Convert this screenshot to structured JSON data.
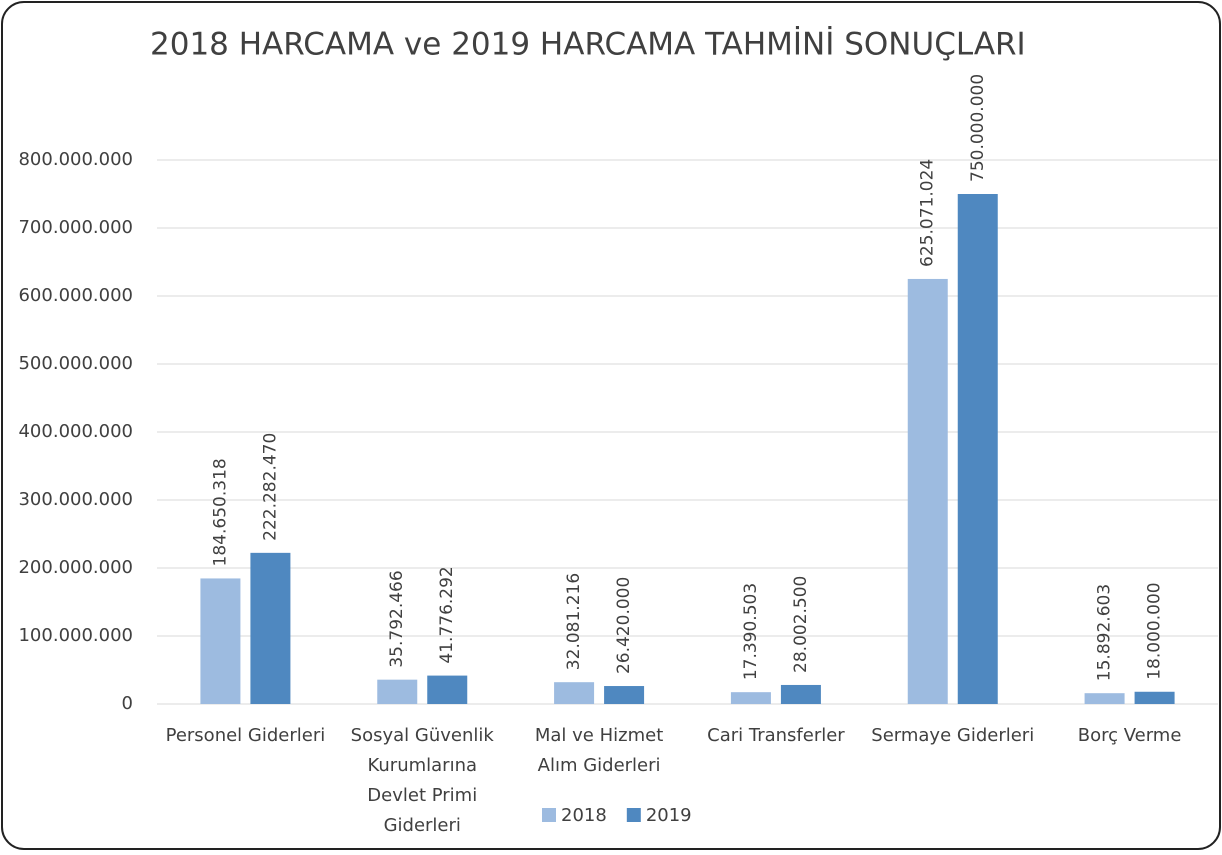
{
  "chart_data": {
    "type": "bar",
    "title": "2018 HARCAMA ve 2019 HARCAMA TAHMİNİ SONUÇLARI",
    "categories": [
      "Personel Giderleri",
      "Sosyal Güvenlik Kurumlarına Devlet Primi Giderleri",
      "Mal ve Hizmet Alım Giderleri",
      "Cari Transferler",
      "Sermaye Giderleri",
      "Borç Verme"
    ],
    "series": [
      {
        "name": "2018",
        "color": "#9dbbe0",
        "values": [
          184650318,
          35792466,
          32081216,
          17390503,
          625071024,
          15892603
        ],
        "value_labels": [
          "184.650.318",
          "35.792.466",
          "32.081.216",
          "17.390.503",
          "625.071.024",
          "15.892.603"
        ]
      },
      {
        "name": "2019",
        "color": "#4f88c0",
        "values": [
          222282470,
          41776292,
          26420000,
          28002500,
          750000000,
          18000000
        ],
        "value_labels": [
          "222.282.470",
          "41.776.292",
          "26.420.000",
          "28.002.500",
          "750.000.000",
          "18.000.000"
        ]
      }
    ],
    "ylim": [
      0,
      800000000
    ],
    "yticks": [
      0,
      {
        "value": 100000000,
        "label": "100.000.000"
      },
      {
        "value": 200000000,
        "label": "200.000.000"
      },
      {
        "value": 300000000,
        "label": "300.000.000"
      },
      {
        "value": 400000000,
        "label": "400.000.000"
      },
      {
        "value": 500000000,
        "label": "500.000.000"
      },
      {
        "value": 600000000,
        "label": "600.000.000"
      },
      {
        "value": 700000000,
        "label": "700.000.000"
      },
      {
        "value": 800000000,
        "label": "800.000.000"
      }
    ],
    "grid": true,
    "legend": "bottom"
  }
}
